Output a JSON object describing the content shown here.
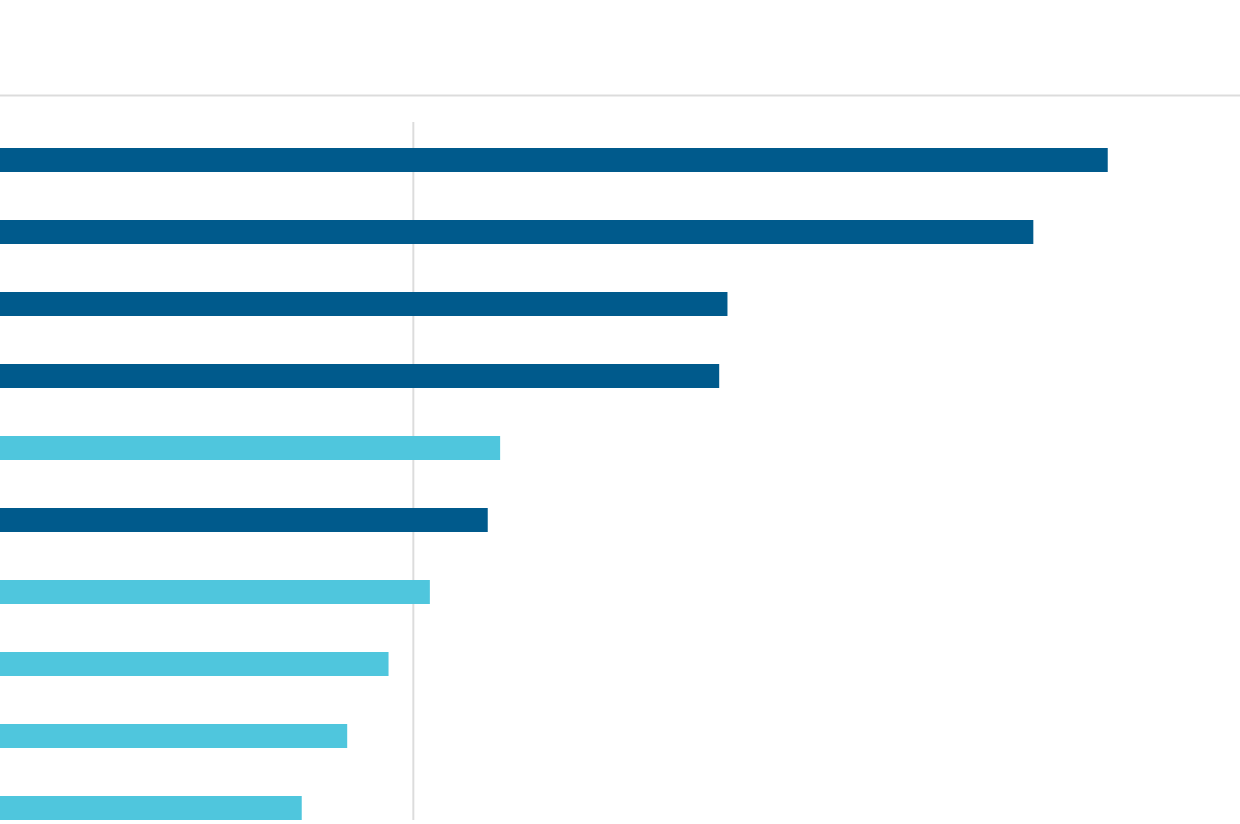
{
  "chart_data": {
    "type": "bar",
    "orientation": "horizontal",
    "categories": [
      null,
      null,
      null,
      null,
      null,
      null,
      null,
      null,
      null,
      null
    ],
    "values": [
      268,
      250,
      176,
      174,
      121,
      118,
      104,
      94,
      84,
      73
    ],
    "colors": [
      "#005a8c",
      "#005a8c",
      "#005a8c",
      "#005a8c",
      "#4fc6dd",
      "#005a8c",
      "#4fc6dd",
      "#4fc6dd",
      "#4fc6dd",
      "#4fc6dd"
    ],
    "xlim": [
      0,
      300
    ],
    "reference_line": 100
  }
}
